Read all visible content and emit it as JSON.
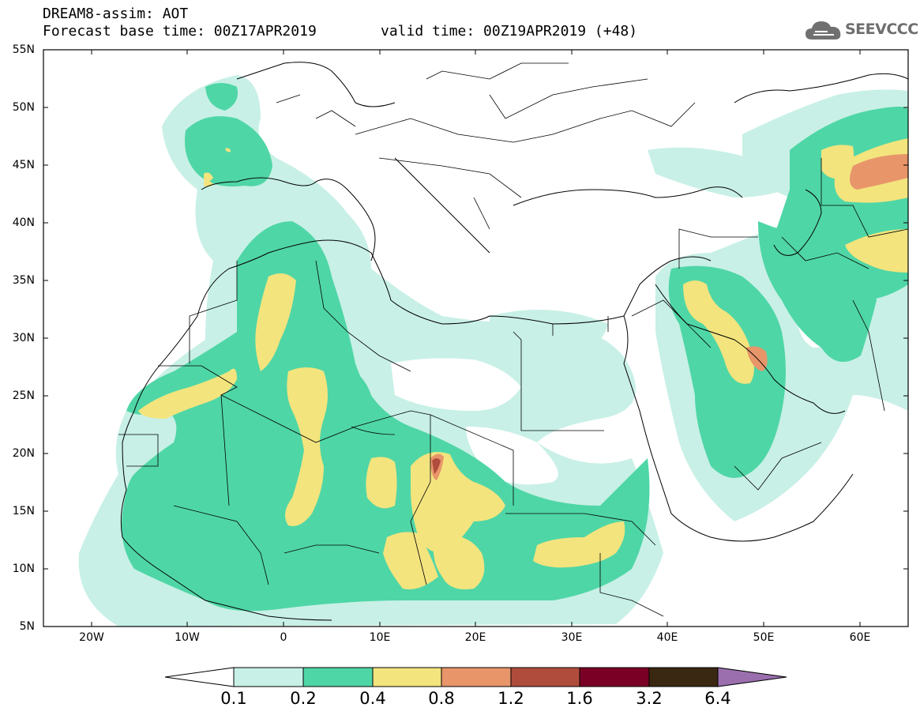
{
  "header": {
    "title_line1": "DREAM8-assim: AOT",
    "title_line2": "Forecast base time: 00Z17APR2019",
    "valid_time": "valid time: 00Z19APR2019 (+48)",
    "logo_text": "SEEVCCC"
  },
  "map": {
    "lat_labels": [
      "55N",
      "50N",
      "45N",
      "40N",
      "35N",
      "30N",
      "25N",
      "20N",
      "15N",
      "10N",
      "5N"
    ],
    "lon_labels": [
      "20W",
      "10W",
      "0",
      "10E",
      "20E",
      "30E",
      "40E",
      "50E",
      "60E"
    ]
  },
  "colorbar": {
    "labels": [
      "0.1",
      "0.2",
      "0.4",
      "0.8",
      "1.2",
      "1.6",
      "3.2",
      "6.4"
    ],
    "colors": [
      "#ffffff",
      "#c8f0e6",
      "#4fd6a6",
      "#f3e47e",
      "#e8956a",
      "#b04c3c",
      "#7a0026",
      "#3a2812",
      "#9b6fae"
    ]
  },
  "icons": [
    "cloud-logo-icon"
  ]
}
